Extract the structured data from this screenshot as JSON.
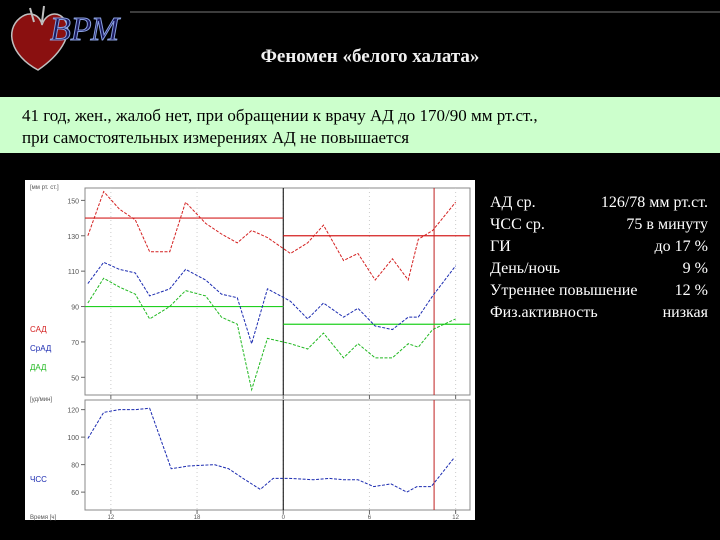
{
  "header": {
    "logo": "ВРМ",
    "title": "Феномен «белого халата»"
  },
  "info": [
    "41 год, жен., жалоб нет, при обращении к врачу АД до 170/90 мм рт.ст.,",
    "при самостоятельных измерениях АД не повышается"
  ],
  "stats": [
    [
      "АД ср.",
      "126/78 мм рт.ст."
    ],
    [
      "ЧСС ср.",
      "75 в минуту"
    ],
    [
      "ГИ",
      "до 17 %"
    ],
    [
      "День/ночь",
      "9 %"
    ],
    [
      "Утреннее повышение",
      "12 %"
    ],
    [
      "Физ.активность",
      "низкая"
    ]
  ],
  "chart_data": [
    {
      "type": "line",
      "y_label": "[мм рт. ст.]",
      "x": [
        10.4,
        11.5,
        12.6,
        13.7,
        14.7,
        16.1,
        17.2,
        18.6,
        19.7,
        20.8,
        21.8,
        22.9,
        24.5,
        25.7,
        26.8,
        28.2,
        29.2,
        30.4,
        31.6,
        32.7,
        33.4,
        34.4,
        36.0
      ],
      "series": [
        {
          "name": "САД",
          "color": "#d42020",
          "values": [
            130,
            155,
            145,
            139,
            121,
            121,
            149,
            137,
            131,
            126,
            133,
            129,
            120,
            126,
            136,
            116,
            120,
            105,
            117,
            105,
            128,
            133,
            149
          ]
        },
        {
          "name": "СрАД",
          "color": "#1a2ab0",
          "values": [
            103,
            115,
            111,
            109,
            96,
            100,
            111,
            105,
            97,
            95,
            69,
            100,
            93,
            83,
            92,
            84,
            89,
            79,
            77,
            84,
            84,
            96,
            113
          ]
        },
        {
          "name": "ДАД",
          "color": "#20b820",
          "values": [
            92,
            106,
            101,
            97,
            83,
            90,
            99,
            96,
            84,
            80,
            43,
            72,
            69,
            66,
            75,
            61,
            69,
            61,
            61,
            69,
            67,
            77,
            83
          ]
        }
      ],
      "reference_lines": [
        {
          "color": "#d42020",
          "value": 140,
          "x": [
            10.2,
            24
          ]
        },
        {
          "color": "#d42020",
          "value": 130,
          "x": [
            24,
            37
          ]
        },
        {
          "color": "#20d020",
          "value": 90,
          "x": [
            10.2,
            24
          ]
        },
        {
          "color": "#20d020",
          "value": 80,
          "x": [
            24,
            37
          ]
        }
      ],
      "vlines": [
        {
          "value": 24,
          "color": "#000000"
        },
        {
          "value": 34.5,
          "color": "#c02020"
        }
      ],
      "xlim": [
        10.2,
        37
      ],
      "ylim": [
        40,
        157
      ],
      "yticks": [
        50,
        70,
        90,
        110,
        130,
        150
      ]
    },
    {
      "type": "line",
      "y_label": "[уд/мин]",
      "x_label": "Время [ч]",
      "x": [
        10.4,
        11.5,
        12.6,
        13.7,
        14.7,
        16.2,
        17.4,
        19.2,
        20.2,
        21.2,
        22.4,
        23.3,
        24.4,
        26.1,
        27.2,
        28.2,
        29.2,
        30.3,
        31.5,
        32.6,
        33.3,
        34.3,
        35.9
      ],
      "series": [
        {
          "name": "ЧСС",
          "color": "#1a2ab0",
          "values": [
            99,
            118,
            120,
            120,
            121,
            77,
            79,
            80,
            77,
            70,
            62,
            70,
            70,
            69,
            70,
            69,
            69,
            64,
            66,
            60,
            64,
            64,
            85
          ]
        }
      ],
      "vlines": [
        {
          "value": 24,
          "color": "#000000"
        },
        {
          "value": 34.5,
          "color": "#c02020"
        }
      ],
      "xlim": [
        10.2,
        37
      ],
      "ylim": [
        47,
        127
      ],
      "yticks": [
        60,
        80,
        100,
        120
      ],
      "xticks": [
        12,
        18,
        {
          "value": 24,
          "label": "0"
        },
        {
          "value": 30,
          "label": "6"
        },
        {
          "value": 36,
          "label": "12"
        }
      ]
    }
  ]
}
